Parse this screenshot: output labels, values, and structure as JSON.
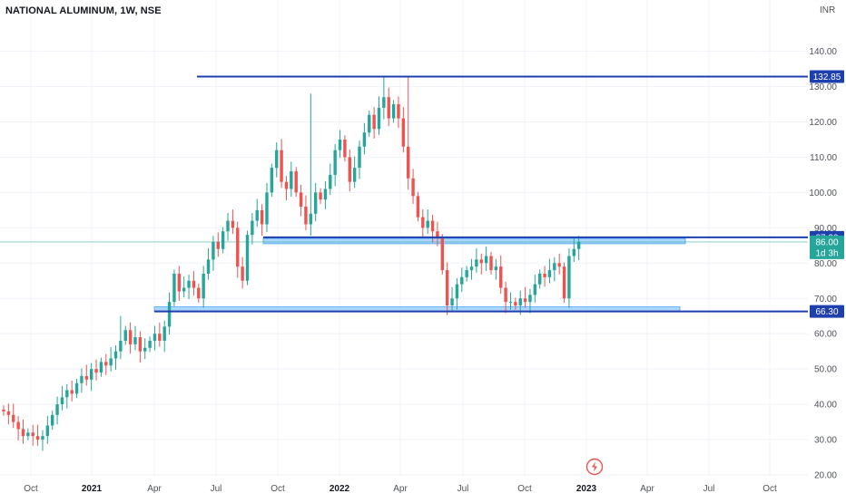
{
  "header": {
    "title": "NATIONAL ALUMINUM, 1W, NSE",
    "currency": "INR"
  },
  "colors": {
    "up": "#26a69a",
    "down": "#ef5350",
    "level": "#1e40af",
    "zone": "#90caf9",
    "grid": "#f0f3fa"
  },
  "chart_data": {
    "type": "candlestick",
    "title": "NATIONAL ALUMINUM, 1W, NSE",
    "ylabel": "INR",
    "ylim": [
      20,
      145
    ],
    "y_ticks": [
      "140.00",
      "130.00",
      "120.00",
      "110.00",
      "100.00",
      "90.00",
      "80.00",
      "70.00",
      "60.00",
      "50.00",
      "40.00",
      "30.00",
      "20.00"
    ],
    "x_ticks": [
      "Oct",
      "2021",
      "Apr",
      "Jul",
      "Oct",
      "2022",
      "Apr",
      "Jul",
      "Oct",
      "2023",
      "Apr",
      "Jul",
      "Oct"
    ],
    "horizontal_levels": [
      {
        "label": "132.85",
        "value": 132.85
      },
      {
        "label": "87.30",
        "value": 87.3
      },
      {
        "label": "66.30",
        "value": 66.3
      }
    ],
    "support_zones": [
      [
        85.5,
        87.0
      ],
      [
        66.3,
        67.6
      ]
    ],
    "last_price": {
      "label": "86.00",
      "value": 86.0,
      "countdown": "1d 3h"
    },
    "series": [
      {
        "close": [
          38,
          37,
          35,
          33,
          31,
          32,
          31,
          30,
          31,
          34,
          37,
          40,
          42,
          44,
          43,
          46,
          48,
          47,
          50,
          49,
          52,
          51,
          53,
          55,
          58,
          61,
          57,
          59,
          55,
          56,
          58,
          60,
          58,
          62,
          69,
          77,
          72,
          73,
          75,
          73,
          70,
          77,
          81,
          86,
          84,
          89,
          92,
          90,
          79,
          75,
          88,
          92,
          95,
          91,
          100,
          107,
          112,
          103,
          101,
          106,
          100,
          96,
          91,
          94,
          100,
          98,
          101,
          105,
          112,
          115,
          110,
          103,
          107,
          113,
          117,
          122,
          118,
          124,
          127,
          121,
          125,
          121,
          113,
          104,
          99,
          93,
          90,
          92,
          89,
          87,
          78,
          68,
          70,
          74,
          76,
          78,
          79,
          81,
          80,
          82,
          78,
          79,
          73,
          69,
          69,
          68,
          70,
          69,
          71,
          74,
          77,
          76,
          78,
          80,
          79,
          70,
          82,
          84,
          86
        ]
      }
    ]
  }
}
